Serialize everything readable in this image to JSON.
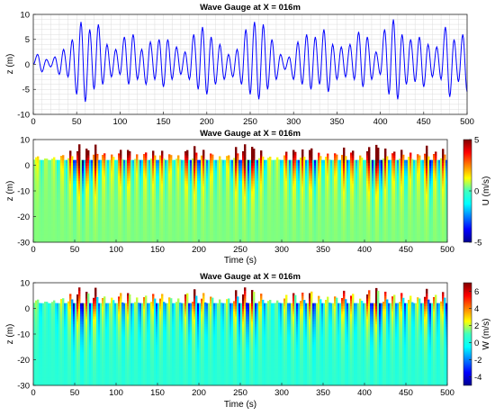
{
  "chart_data": [
    {
      "type": "line",
      "title": "Wave Gauge at X = 016m",
      "xlabel": "",
      "ylabel": "z (m)",
      "xlim": [
        0,
        500
      ],
      "ylim": [
        -10,
        10
      ],
      "xticks": [
        "0",
        "50",
        "100",
        "150",
        "200",
        "250",
        "300",
        "350",
        "400",
        "450",
        "500"
      ],
      "yticks": [
        "10",
        "5",
        "0",
        "-5",
        "-10"
      ],
      "grid": true,
      "color": "#0000ff",
      "series": [
        {
          "x": [
            0,
            5,
            10,
            15,
            20,
            25,
            30,
            35,
            40,
            45,
            50,
            55,
            60,
            65,
            70,
            75,
            80,
            85,
            90,
            95,
            100,
            105,
            110,
            115,
            120,
            125,
            130,
            135,
            140,
            145,
            150,
            155,
            160,
            165,
            170,
            175,
            180,
            185,
            190,
            195,
            200,
            205,
            210,
            215,
            220,
            225,
            230,
            235,
            240,
            245,
            250,
            255,
            260,
            265,
            270,
            275,
            280,
            285,
            290,
            295,
            300,
            305,
            310,
            315,
            320,
            325,
            330,
            335,
            340,
            345,
            350,
            355,
            360,
            365,
            370,
            375,
            380,
            385,
            390,
            395,
            400,
            405,
            410,
            415,
            420,
            425,
            430,
            435,
            440,
            445,
            450,
            455,
            460,
            465,
            470,
            475,
            480,
            485,
            490,
            495,
            500
          ],
          "y": [
            0,
            2,
            -1.5,
            1,
            -0.5,
            1.5,
            -2,
            3,
            -2.5,
            5,
            -6,
            8.5,
            -7.5,
            7,
            -5,
            8,
            -4,
            4,
            -2.5,
            3,
            -2,
            5.5,
            -4,
            6,
            -3,
            3,
            -4,
            4.5,
            -3,
            5,
            -4.5,
            5,
            -3,
            3.5,
            -2,
            2.5,
            -3,
            6,
            -5,
            7.5,
            -6,
            5.5,
            -4,
            4,
            -3,
            2,
            -2.5,
            3,
            -4,
            7,
            -6,
            8.5,
            -7,
            8,
            -5,
            5,
            -3,
            2,
            -1,
            1.5,
            -3,
            4.5,
            -4,
            6,
            -5,
            5.5,
            -4,
            7,
            -5.5,
            4,
            -3,
            3.5,
            -2.5,
            4,
            -3,
            6.5,
            -4.5,
            5.5,
            -3,
            2.5,
            -2,
            7,
            -6,
            9,
            -7,
            6,
            -4,
            5,
            -3.5,
            5.5,
            -4.5,
            4,
            -2.5,
            3.5,
            -3,
            7.5,
            -6.5,
            5,
            -3.5,
            6,
            -5.5
          ]
        }
      ]
    },
    {
      "type": "heatmap",
      "title": "Wave Gauge at X = 016m",
      "xlabel": "Time (s)",
      "ylabel": "z (m)",
      "colorbar_label": "U (m/s)",
      "xlim": [
        0,
        500
      ],
      "ylim": [
        -30,
        10
      ],
      "clim": [
        -5,
        5
      ],
      "xticks": [
        "0",
        "50",
        "100",
        "150",
        "200",
        "250",
        "300",
        "350",
        "400",
        "450",
        "500"
      ],
      "yticks": [
        "10",
        "0",
        "-10",
        "-20",
        "-30"
      ],
      "colorbar_ticks": [
        "5",
        "0",
        "-5"
      ]
    },
    {
      "type": "heatmap",
      "title": "Wave Gauge at X = 016m",
      "xlabel": "Time (s)",
      "ylabel": "z (m)",
      "colorbar_label": "W (m/s)",
      "xlim": [
        0,
        500
      ],
      "ylim": [
        -30,
        10
      ],
      "clim": [
        -5,
        7
      ],
      "xticks": [
        "0",
        "50",
        "100",
        "150",
        "200",
        "250",
        "300",
        "350",
        "400",
        "450",
        "500"
      ],
      "yticks": [
        "10",
        "0",
        "-10",
        "-20",
        "-30"
      ],
      "colorbar_ticks": [
        "6",
        "4",
        "2",
        "0",
        "-2",
        "-4"
      ]
    }
  ]
}
